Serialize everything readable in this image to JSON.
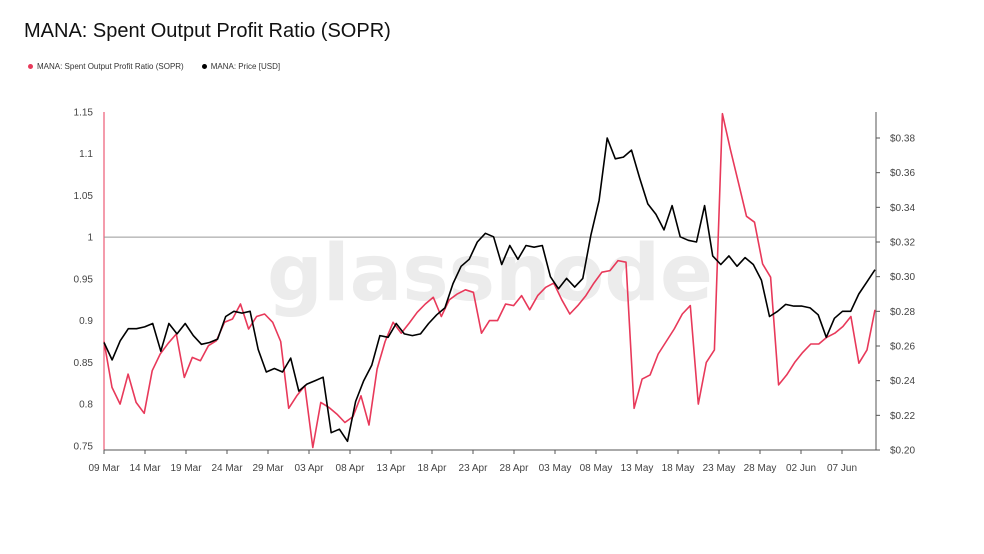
{
  "chart_data": {
    "type": "line",
    "title": "MANA: Spent Output Profit Ratio (SOPR)",
    "watermark": "glassnode",
    "legend": {
      "position": "top-left"
    },
    "colors": {
      "sopr": "#e8395a",
      "price": "#000000",
      "reference_line": "#999999"
    },
    "x_labels": [
      "09 Mar",
      "14 Mar",
      "19 Mar",
      "24 Mar",
      "29 Mar",
      "03 Apr",
      "08 Apr",
      "13 Apr",
      "18 Apr",
      "23 Apr",
      "28 Apr",
      "03 May",
      "08 May",
      "13 May",
      "18 May",
      "23 May",
      "28 May",
      "02 Jun",
      "07 Jun"
    ],
    "y_left": {
      "ticks": [
        "1.15",
        "1.1",
        "1.05",
        "1",
        "0.95",
        "0.9",
        "0.85",
        "0.8",
        "0.75"
      ],
      "range": [
        0.745,
        1.15
      ],
      "reference": 1
    },
    "y_right": {
      "ticks": [
        "$0.38",
        "$0.36",
        "$0.34",
        "$0.32",
        "$0.30",
        "$0.28",
        "$0.26",
        "$0.24",
        "$0.22",
        "$0.20"
      ],
      "range": [
        0.2,
        0.395
      ]
    },
    "series": [
      {
        "name": "MANA: Spent Output Profit Ratio (SOPR)",
        "axis": "left",
        "values": [
          0.875,
          0.82,
          0.8,
          0.836,
          0.802,
          0.789,
          0.84,
          0.86,
          0.873,
          0.884,
          0.832,
          0.856,
          0.852,
          0.87,
          0.876,
          0.898,
          0.902,
          0.92,
          0.89,
          0.905,
          0.908,
          0.898,
          0.875,
          0.795,
          0.81,
          0.822,
          0.748,
          0.802,
          0.796,
          0.788,
          0.778,
          0.785,
          0.81,
          0.775,
          0.842,
          0.875,
          0.898,
          0.885,
          0.897,
          0.91,
          0.92,
          0.928,
          0.905,
          0.925,
          0.932,
          0.937,
          0.934,
          0.885,
          0.9,
          0.9,
          0.92,
          0.918,
          0.93,
          0.913,
          0.93,
          0.94,
          0.945,
          0.925,
          0.908,
          0.918,
          0.93,
          0.945,
          0.958,
          0.96,
          0.972,
          0.97,
          0.795,
          0.83,
          0.835,
          0.86,
          0.875,
          0.89,
          0.908,
          0.918,
          0.8,
          0.85,
          0.865,
          1.148,
          1.105,
          1.065,
          1.025,
          1.018,
          0.968,
          0.952,
          0.823,
          0.835,
          0.85,
          0.862,
          0.872,
          0.872,
          0.88,
          0.885,
          0.893,
          0.905,
          0.849,
          0.865,
          0.913
        ]
      },
      {
        "name": "MANA: Price [USD]",
        "axis": "right",
        "values": [
          0.262,
          0.252,
          0.263,
          0.27,
          0.27,
          0.271,
          0.273,
          0.257,
          0.273,
          0.267,
          0.273,
          0.266,
          0.261,
          0.262,
          0.264,
          0.277,
          0.28,
          0.279,
          0.28,
          0.258,
          0.245,
          0.247,
          0.245,
          0.253,
          0.234,
          0.238,
          0.24,
          0.242,
          0.21,
          0.212,
          0.205,
          0.228,
          0.24,
          0.249,
          0.266,
          0.265,
          0.273,
          0.267,
          0.266,
          0.267,
          0.273,
          0.278,
          0.282,
          0.296,
          0.306,
          0.31,
          0.32,
          0.325,
          0.323,
          0.307,
          0.318,
          0.31,
          0.318,
          0.317,
          0.318,
          0.3,
          0.293,
          0.299,
          0.294,
          0.299,
          0.324,
          0.344,
          0.38,
          0.368,
          0.369,
          0.373,
          0.357,
          0.342,
          0.336,
          0.327,
          0.341,
          0.323,
          0.321,
          0.32,
          0.341,
          0.312,
          0.307,
          0.312,
          0.306,
          0.311,
          0.307,
          0.298,
          0.277,
          0.28,
          0.284,
          0.283,
          0.283,
          0.282,
          0.278,
          0.265,
          0.276,
          0.28,
          0.28,
          0.29,
          0.297,
          0.304
        ]
      }
    ]
  }
}
